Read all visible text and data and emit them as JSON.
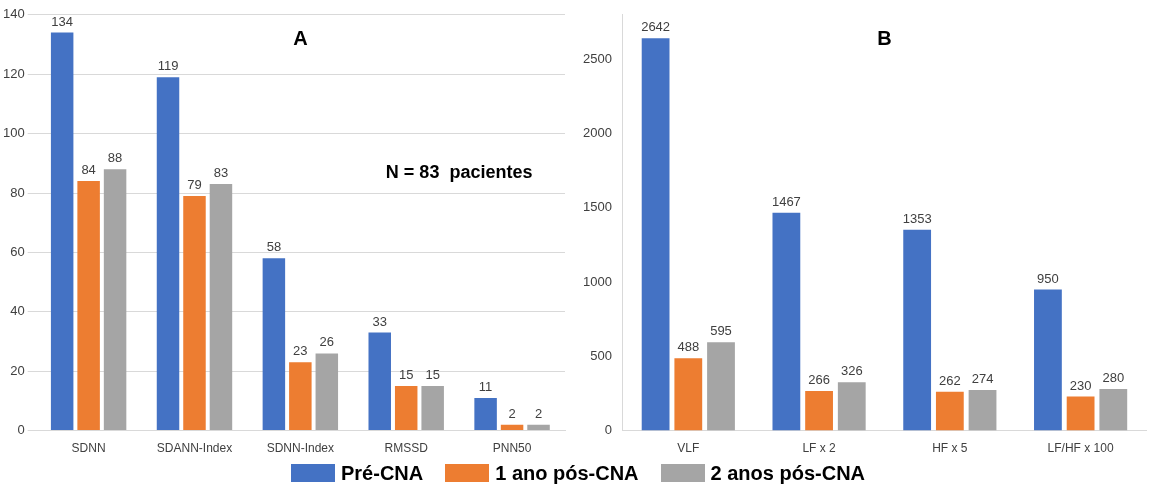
{
  "chart_data": [
    {
      "type": "bar",
      "categories": [
        "SDNN",
        "SDANN-Index",
        "SDNN-Index",
        "RMSSD",
        "PNN50"
      ],
      "series": [
        {
          "name": "Pré-CNA",
          "color": "#4472c4",
          "values": [
            134,
            119,
            58,
            33,
            11
          ]
        },
        {
          "name": "1 ano pós-CNA",
          "color": "#ed7d31",
          "values": [
            84,
            79,
            23,
            15,
            2
          ]
        },
        {
          "name": "2 anos pós-CNA",
          "color": "#a5a5a5",
          "values": [
            88,
            83,
            26,
            15,
            2
          ]
        }
      ],
      "ylim": [
        0,
        140
      ],
      "yticks": [
        0,
        20,
        40,
        60,
        80,
        100,
        120,
        140
      ],
      "grid": "y",
      "data_labels": true,
      "legend": "bottom",
      "annotations": [
        "A",
        "N = 83  pacientes"
      ]
    },
    {
      "type": "bar",
      "categories": [
        "VLF",
        "LF x 2",
        "HF x 5",
        "LF/HF x 100"
      ],
      "series": [
        {
          "color": "#4472c4",
          "values": [
            2642,
            1467,
            1353,
            950
          ]
        },
        {
          "color": "#ed7d31",
          "values": [
            488,
            266,
            262,
            230
          ]
        },
        {
          "color": "#a5a5a5",
          "values": [
            595,
            326,
            274,
            280
          ]
        }
      ],
      "ylim": [
        0,
        2800
      ],
      "yticks": [
        0,
        500,
        1000,
        1500,
        2000,
        2500
      ],
      "data_labels": true,
      "annotations": [
        "B"
      ]
    }
  ]
}
